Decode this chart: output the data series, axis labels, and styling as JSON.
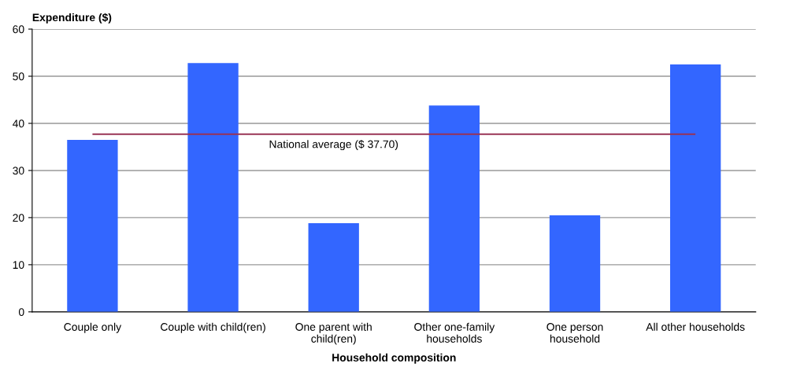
{
  "chart_data": {
    "type": "bar",
    "xlabel": "Household composition",
    "ylabel": "Expenditure ($)",
    "categories": [
      "Couple only",
      "Couple with child(ren)",
      "One parent with\nchild(ren)",
      "Other one-family\nhouseholds",
      "One person\nhousehold",
      "All other households"
    ],
    "values": [
      36.5,
      52.8,
      18.8,
      43.8,
      20.5,
      52.5
    ],
    "color": "#3366ff",
    "ylim": [
      0,
      60
    ],
    "yticks": [
      0,
      10,
      20,
      30,
      40,
      50,
      60
    ],
    "grid": "y",
    "ref_lines": [
      {
        "axis": "y",
        "value": 37.7,
        "label": "National average ($ 37.70)",
        "color": "#993355"
      }
    ]
  }
}
